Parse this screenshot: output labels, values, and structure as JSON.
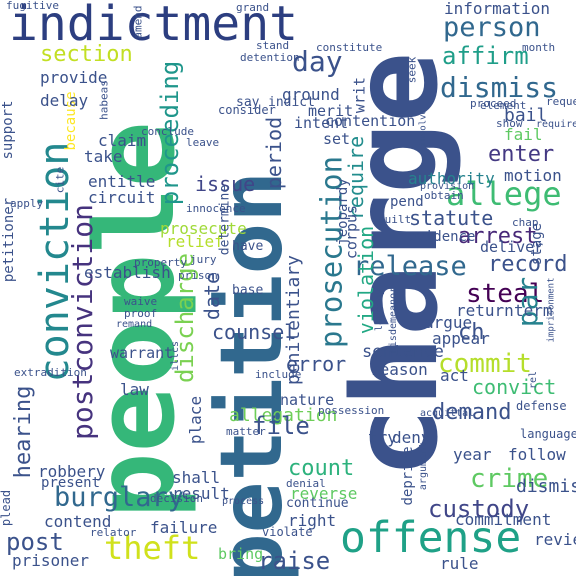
{
  "words": [
    {
      "text": "charge",
      "color": "#3b528b"
    },
    {
      "text": "people",
      "color": "#35b779"
    },
    {
      "text": "petition",
      "color": "#31688e"
    },
    {
      "text": "indictment",
      "color": "#2c3e80"
    },
    {
      "text": "conviction",
      "color": "#23888e"
    },
    {
      "text": "offense",
      "color": "#1fa187"
    },
    {
      "text": "prosecution",
      "color": "#2a788e"
    },
    {
      "text": "postconviction",
      "color": "#46337e"
    },
    {
      "text": "allege",
      "color": "#3ebc73"
    },
    {
      "text": "theft",
      "color": "#d0e11c"
    },
    {
      "text": "burglary",
      "color": "#31688e"
    },
    {
      "text": "release",
      "color": "#31688e"
    },
    {
      "text": "person",
      "color": "#31688e"
    },
    {
      "text": "crime",
      "color": "#5ec962"
    },
    {
      "text": "dismiss",
      "color": "#31688e"
    },
    {
      "text": "commit",
      "color": "#b5de2b"
    },
    {
      "text": "par",
      "color": "#26828e"
    },
    {
      "text": "affirm",
      "color": "#1f9e89"
    },
    {
      "text": "steal",
      "color": "#440154"
    },
    {
      "text": "file",
      "color": "#3b528b"
    },
    {
      "text": "custody",
      "color": "#404688"
    },
    {
      "text": "demand",
      "color": "#3b528b"
    },
    {
      "text": "count",
      "color": "#2db27d"
    },
    {
      "text": "post",
      "color": "#3b528b"
    },
    {
      "text": "raise",
      "color": "#3b528b"
    },
    {
      "text": "hearing",
      "color": "#3b528b"
    },
    {
      "text": "discharge",
      "color": "#7ad151"
    },
    {
      "text": "proceeding",
      "color": "#1f968b"
    },
    {
      "text": "section",
      "color": "#c2df23"
    },
    {
      "text": "convict",
      "color": "#3ebc73"
    },
    {
      "text": "record",
      "color": "#3b528b"
    },
    {
      "text": "accuse",
      "color": "#3b528b"
    },
    {
      "text": "arrest",
      "color": "#482878"
    },
    {
      "text": "ch",
      "color": "#3b528b"
    },
    {
      "text": "day",
      "color": "#3b528b"
    },
    {
      "text": "date",
      "color": "#3b528b"
    },
    {
      "text": "require",
      "color": "#228d8d"
    },
    {
      "text": "violation",
      "color": "#22a884"
    },
    {
      "text": "error",
      "color": "#3b528b"
    },
    {
      "text": "period",
      "color": "#3b528b"
    },
    {
      "text": "issue",
      "color": "#404688"
    },
    {
      "text": "prosecute",
      "color": "#a0da39"
    },
    {
      "text": "enter",
      "color": "#443983"
    },
    {
      "text": "contention",
      "color": "#3b528b"
    },
    {
      "text": "information",
      "color": "#3b528b"
    },
    {
      "text": "allegation",
      "color": "#6ece58"
    },
    {
      "text": "counsel",
      "color": "#3b528b"
    },
    {
      "text": "sentence",
      "color": "#3b528b"
    },
    {
      "text": "penitentiary",
      "color": "#3b528b"
    },
    {
      "text": "deprive",
      "color": "#3b528b"
    },
    {
      "text": "motion",
      "color": "#3b528b"
    },
    {
      "text": "bail",
      "color": "#3b528b"
    },
    {
      "text": "fail",
      "color": "#5ec962"
    },
    {
      "text": "statute",
      "color": "#3b528b"
    },
    {
      "text": "authority",
      "color": "#26828e"
    },
    {
      "text": "argue",
      "color": "#3b528b"
    },
    {
      "text": "appear",
      "color": "#3b528b"
    },
    {
      "text": "act",
      "color": "#3b528b"
    },
    {
      "text": "deliver",
      "color": "#3b528b"
    },
    {
      "text": "return",
      "color": "#3b528b"
    },
    {
      "text": "term",
      "color": "#3b528b"
    },
    {
      "text": "try",
      "color": "#3b528b"
    },
    {
      "text": "deny",
      "color": "#3b528b"
    },
    {
      "text": "prove",
      "color": "#3b528b"
    },
    {
      "text": "year",
      "color": "#3b528b"
    },
    {
      "text": "follow",
      "color": "#3b528b"
    },
    {
      "text": "dismissal",
      "color": "#3b528b"
    },
    {
      "text": "commitment",
      "color": "#3b528b"
    },
    {
      "text": "rule",
      "color": "#3b528b"
    },
    {
      "text": "right",
      "color": "#3b528b"
    },
    {
      "text": "reverse",
      "color": "#5ec962"
    },
    {
      "text": "failure",
      "color": "#3b528b"
    },
    {
      "text": "bring",
      "color": "#5ec962"
    },
    {
      "text": "contend",
      "color": "#3b528b"
    },
    {
      "text": "prisoner",
      "color": "#3b528b"
    },
    {
      "text": "establish",
      "color": "#3b528b"
    },
    {
      "text": "circuit",
      "color": "#3b528b"
    },
    {
      "text": "entitle",
      "color": "#3b528b"
    },
    {
      "text": "claim",
      "color": "#3b528b"
    },
    {
      "text": "take",
      "color": "#3b528b"
    },
    {
      "text": "delay",
      "color": "#3b528b"
    },
    {
      "text": "provide",
      "color": "#3b528b"
    },
    {
      "text": "support",
      "color": "#3b528b"
    },
    {
      "text": "because",
      "color": "#fde725"
    },
    {
      "text": "ground",
      "color": "#3b528b"
    },
    {
      "text": "merit",
      "color": "#3b528b"
    },
    {
      "text": "intent",
      "color": "#3b528b"
    },
    {
      "text": "consider",
      "color": "#3b528b"
    },
    {
      "text": "indict",
      "color": "#3b528b"
    },
    {
      "text": "say",
      "color": "#3b528b"
    },
    {
      "text": "writ",
      "color": "#3b528b"
    },
    {
      "text": "pend",
      "color": "#3b528b"
    },
    {
      "text": "corpus",
      "color": "#3b528b"
    },
    {
      "text": "jeopardy",
      "color": "#3b528b"
    },
    {
      "text": "determine",
      "color": "#3b528b"
    },
    {
      "text": "relief",
      "color": "#b5de2b"
    },
    {
      "text": "have",
      "color": "#3b528b"
    },
    {
      "text": "base",
      "color": "#3b528b"
    },
    {
      "text": "result",
      "color": "#3b528b"
    },
    {
      "text": "shall",
      "color": "#3b528b"
    },
    {
      "text": "bar",
      "color": "#3b528b"
    },
    {
      "text": "reason",
      "color": "#3b528b"
    },
    {
      "text": "nature",
      "color": "#3b528b"
    },
    {
      "text": "law",
      "color": "#3b528b"
    },
    {
      "text": "robbery",
      "color": "#3b528b"
    },
    {
      "text": "present",
      "color": "#3b528b"
    },
    {
      "text": "plead",
      "color": "#3b528b"
    },
    {
      "text": "petitioner",
      "color": "#3b528b"
    },
    {
      "text": "extradition",
      "color": "#3b528b"
    },
    {
      "text": "warrant",
      "color": "#3b528b"
    },
    {
      "text": "place",
      "color": "#3b528b"
    },
    {
      "text": "set",
      "color": "#3b528b"
    },
    {
      "text": "review",
      "color": "#3b528b"
    },
    {
      "text": "evidence",
      "color": "#3b528b"
    },
    {
      "text": "stage",
      "color": "#3b528b"
    },
    {
      "text": "violate",
      "color": "#3b528b"
    },
    {
      "text": "continue",
      "color": "#3b528b"
    },
    {
      "text": "denial",
      "color": "#3b528b"
    },
    {
      "text": "decision",
      "color": "#3b528b"
    },
    {
      "text": "matter",
      "color": "#3b528b"
    },
    {
      "text": "include",
      "color": "#3b528b"
    },
    {
      "text": "defense",
      "color": "#3b528b"
    },
    {
      "text": "acquittal",
      "color": "#3b528b"
    },
    {
      "text": "language",
      "color": "#3b528b"
    },
    {
      "text": "believe",
      "color": "#3b528b"
    },
    {
      "text": "cite",
      "color": "#3b528b"
    },
    {
      "text": "apply",
      "color": "#3b528b"
    },
    {
      "text": "proof",
      "color": "#3b528b"
    },
    {
      "text": "jury",
      "color": "#3b528b"
    },
    {
      "text": "element",
      "color": "#3b528b"
    },
    {
      "text": "show",
      "color": "#3b528b"
    },
    {
      "text": "month",
      "color": "#3b528b"
    },
    {
      "text": "request",
      "color": "#3b528b"
    },
    {
      "text": "chap",
      "color": "#3b528b"
    },
    {
      "text": "obtain",
      "color": "#3b528b"
    },
    {
      "text": "guilt",
      "color": "#3b528b"
    },
    {
      "text": "contain",
      "color": "#3b528b"
    },
    {
      "text": "seek",
      "color": "#3b528b"
    },
    {
      "text": "detention",
      "color": "#3b528b"
    },
    {
      "text": "stand",
      "color": "#3b528b"
    },
    {
      "text": "constitute",
      "color": "#3b528b"
    },
    {
      "text": "fugitive",
      "color": "#3b528b"
    },
    {
      "text": "amend",
      "color": "#3b528b"
    },
    {
      "text": "grand",
      "color": "#3b528b"
    },
    {
      "text": "habeas",
      "color": "#3b528b"
    },
    {
      "text": "leave",
      "color": "#3b528b"
    },
    {
      "text": "innocence",
      "color": "#3b528b"
    },
    {
      "text": "property",
      "color": "#3b528b"
    },
    {
      "text": "prison",
      "color": "#3b528b"
    },
    {
      "text": "relator",
      "color": "#3b528b"
    },
    {
      "text": "proceed",
      "color": "#3b528b"
    },
    {
      "text": "argument",
      "color": "#3b528b"
    },
    {
      "text": "provision",
      "color": "#3b528b"
    },
    {
      "text": "misdemeanor",
      "color": "#3b528b"
    },
    {
      "text": "larceny",
      "color": "#3b528b"
    },
    {
      "text": "rel",
      "color": "#3b528b"
    },
    {
      "text": "imprisonment",
      "color": "#3b528b"
    },
    {
      "text": "possession",
      "color": "#3b528b"
    },
    {
      "text": "conclude",
      "color": "#3b528b"
    },
    {
      "text": "involve",
      "color": "#3b528b"
    },
    {
      "text": "process",
      "color": "#3b528b"
    },
    {
      "text": "requirement",
      "color": "#3b528b"
    },
    {
      "text": "illcs",
      "color": "#3b528b"
    },
    {
      "text": "waive",
      "color": "#3b528b"
    },
    {
      "text": "remand",
      "color": "#3b528b"
    }
  ]
}
